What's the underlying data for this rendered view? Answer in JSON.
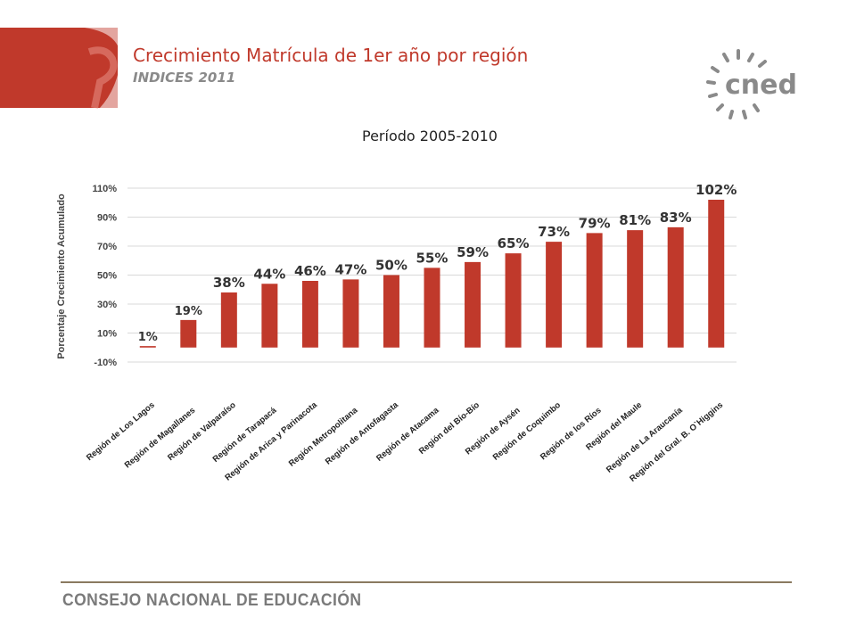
{
  "header": {
    "title": "Crecimiento Matrícula de 1er año por región",
    "subtitle": "INDICES 2011"
  },
  "logo": {
    "text": "cned",
    "icon": "sunburst-icon"
  },
  "footer": {
    "text": "CONSEJO NACIONAL DE EDUCACIÓN"
  },
  "colors": {
    "accent": "#c0392b",
    "bar": "#c0392b",
    "grid": "#d9d9d9",
    "logo": "#8a8a8a"
  },
  "chart_data": {
    "type": "bar",
    "title": "Período 2005-2010",
    "xlabel": "",
    "ylabel": "Porcentaje Crecimiento Acumulado",
    "ylim": [
      -10,
      110
    ],
    "yticks": [
      -10,
      10,
      30,
      50,
      70,
      90,
      110
    ],
    "ytick_labels": [
      "-10%",
      "10%",
      "30%",
      "50%",
      "70%",
      "90%",
      "110%"
    ],
    "grid": true,
    "categories": [
      "Región de Los Lagos",
      "Región de Magallanes",
      "Región de Valparaíso",
      "Región de Tarapacá",
      "Región de Arica y Parinacota",
      "Región Metropolitana",
      "Región de Antofagasta",
      "Región de Atacama",
      "Región del Bío-Bío",
      "Región de Aysén",
      "Región de Coquimbo",
      "Región de los Ríos",
      "Región del Maule",
      "Región de La Araucanía",
      "Región del Gral. B. O`Higgins"
    ],
    "values": [
      1,
      19,
      38,
      44,
      46,
      47,
      50,
      55,
      59,
      65,
      73,
      79,
      81,
      83,
      102
    ],
    "labels": [
      "1%",
      "19%",
      "38%",
      "44%",
      "46%",
      "47%",
      "50%",
      "55%",
      "59%",
      "65%",
      "73%",
      "79%",
      "81%",
      "83%",
      "102%"
    ]
  }
}
